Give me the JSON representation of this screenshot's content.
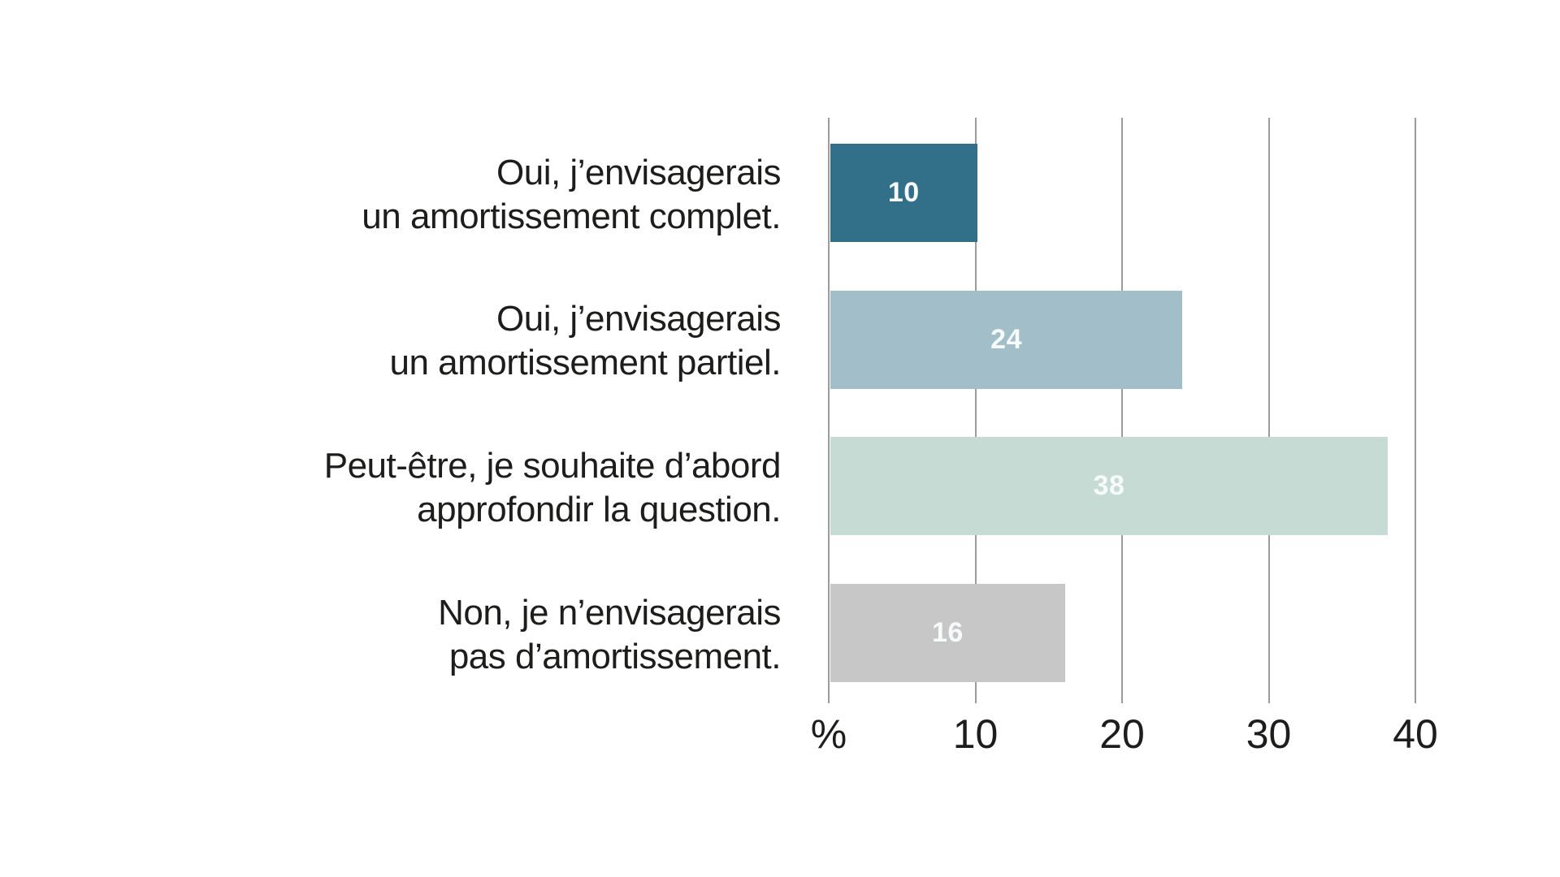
{
  "chart_data": {
    "type": "bar",
    "orientation": "horizontal",
    "title": "",
    "xlabel": "%",
    "ylabel": "",
    "unit": "percent",
    "grid": "vertical",
    "xlim": [
      0,
      40
    ],
    "x_tick_labels": [
      "%",
      "10",
      "20",
      "30",
      "40"
    ],
    "x_tick_values": [
      0,
      10,
      20,
      30,
      40
    ],
    "categories": [
      "Oui, j’envisagerais un amortissement complet.",
      "Oui, j’envisagerais un amortissement partiel.",
      "Peut-être, je souhaite d’abord approfondir la question.",
      "Non, je n’envisagerais pas d’amortissement."
    ],
    "values": [
      10,
      24,
      38,
      16
    ],
    "bar_colors": [
      "#32708a",
      "#a2bfc9",
      "#c6dbd3",
      "#c7c7c7"
    ],
    "value_label_color": "#f7fafb",
    "gridline_color": "#9c9c9c",
    "text_color": "#1d1d1b"
  },
  "bars": [
    {
      "label_lines": [
        "Oui, j’envisagerais",
        "un amortissement complet."
      ],
      "value": 10,
      "value_label": "10",
      "color": "#32708a"
    },
    {
      "label_lines": [
        "Oui, j’envisagerais",
        "un amortissement partiel."
      ],
      "value": 24,
      "value_label": "24",
      "color": "#a2bfc9"
    },
    {
      "label_lines": [
        "Peut-être, je souhaite d’abord",
        "approfondir la question."
      ],
      "value": 38,
      "value_label": "38",
      "color": "#c6dbd3"
    },
    {
      "label_lines": [
        "Non, je n’envisagerais",
        "pas d’amortissement."
      ],
      "value": 16,
      "value_label": "16",
      "color": "#c7c7c7"
    }
  ],
  "axis": {
    "ticks": [
      {
        "label": "%",
        "value": 0
      },
      {
        "label": "10",
        "value": 10
      },
      {
        "label": "20",
        "value": 20
      },
      {
        "label": "30",
        "value": 30
      },
      {
        "label": "40",
        "value": 40
      }
    ]
  }
}
